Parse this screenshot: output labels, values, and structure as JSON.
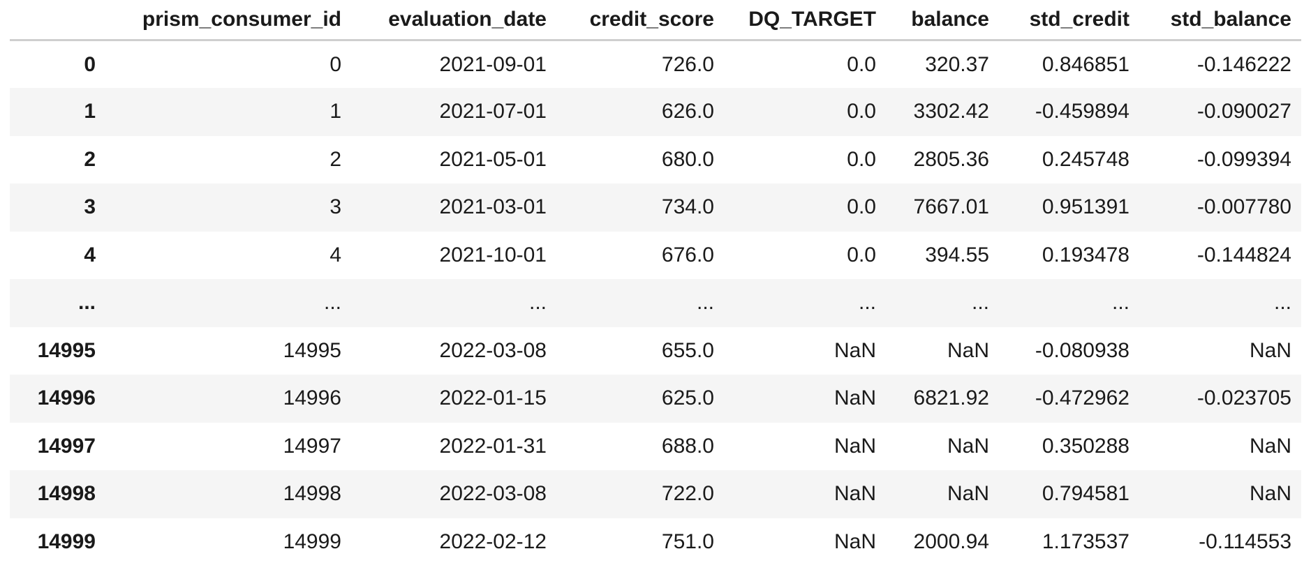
{
  "dataframe": {
    "columns": [
      "",
      "prism_consumer_id",
      "evaluation_date",
      "credit_score",
      "DQ_TARGET",
      "balance",
      "std_credit",
      "std_balance"
    ],
    "rows": [
      [
        "0",
        "0",
        "2021-09-01",
        "726.0",
        "0.0",
        "320.37",
        "0.846851",
        "-0.146222"
      ],
      [
        "1",
        "1",
        "2021-07-01",
        "626.0",
        "0.0",
        "3302.42",
        "-0.459894",
        "-0.090027"
      ],
      [
        "2",
        "2",
        "2021-05-01",
        "680.0",
        "0.0",
        "2805.36",
        "0.245748",
        "-0.099394"
      ],
      [
        "3",
        "3",
        "2021-03-01",
        "734.0",
        "0.0",
        "7667.01",
        "0.951391",
        "-0.007780"
      ],
      [
        "4",
        "4",
        "2021-10-01",
        "676.0",
        "0.0",
        "394.55",
        "0.193478",
        "-0.144824"
      ],
      [
        "...",
        "...",
        "...",
        "...",
        "...",
        "...",
        "...",
        "..."
      ],
      [
        "14995",
        "14995",
        "2022-03-08",
        "655.0",
        "NaN",
        "NaN",
        "-0.080938",
        "NaN"
      ],
      [
        "14996",
        "14996",
        "2022-01-15",
        "625.0",
        "NaN",
        "6821.92",
        "-0.472962",
        "-0.023705"
      ],
      [
        "14997",
        "14997",
        "2022-01-31",
        "688.0",
        "NaN",
        "NaN",
        "0.350288",
        "NaN"
      ],
      [
        "14998",
        "14998",
        "2022-03-08",
        "722.0",
        "NaN",
        "NaN",
        "0.794581",
        "NaN"
      ],
      [
        "14999",
        "14999",
        "2022-02-12",
        "751.0",
        "NaN",
        "2000.94",
        "1.173537",
        "-0.114553"
      ]
    ]
  },
  "colors": {
    "header_rule": "#cfcfcf",
    "stripe": "#f5f5f5",
    "text": "#1a1a1a"
  }
}
